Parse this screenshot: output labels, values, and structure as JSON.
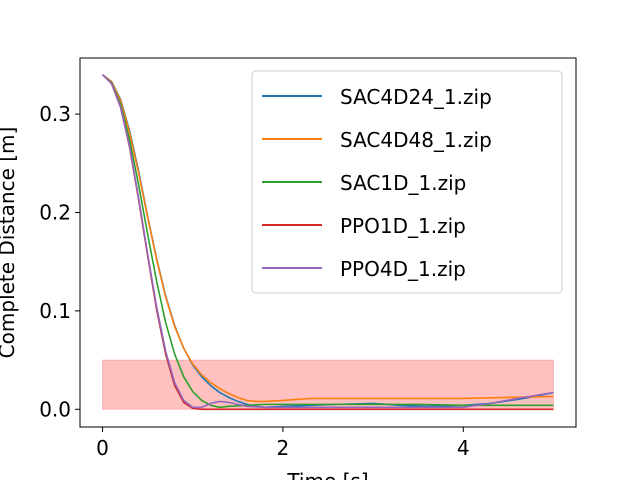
{
  "chart_data": {
    "type": "line",
    "xlabel": "Time [s]",
    "ylabel": "Complete Distance [m]",
    "xlim": [
      -0.25,
      5.25
    ],
    "ylim": [
      -0.018,
      0.357
    ],
    "xticks": [
      0,
      2,
      4
    ],
    "xtick_labels": [
      "0",
      "2",
      "4"
    ],
    "yticks": [
      0.0,
      0.1,
      0.2,
      0.3
    ],
    "ytick_labels": [
      "0.0",
      "0.1",
      "0.2",
      "0.3"
    ],
    "grid": false,
    "legend_position": "top-right",
    "target_band": {
      "x": [
        0,
        5
      ],
      "y": [
        0,
        0.05
      ],
      "color": "#ff9896"
    },
    "series": [
      {
        "name": "SAC4D24_1.zip",
        "color": "#1f77b4",
        "x": [
          0,
          0.1,
          0.2,
          0.3,
          0.4,
          0.5,
          0.6,
          0.7,
          0.8,
          0.9,
          1.0,
          1.1,
          1.2,
          1.3,
          1.4,
          1.5,
          1.6,
          1.7,
          1.8,
          2.0,
          2.3,
          2.6,
          3.0,
          3.3,
          3.6,
          4.0,
          4.3,
          4.6,
          4.8,
          5.0
        ],
        "y": [
          0.34,
          0.333,
          0.315,
          0.283,
          0.242,
          0.196,
          0.153,
          0.115,
          0.085,
          0.062,
          0.045,
          0.033,
          0.024,
          0.017,
          0.012,
          0.008,
          0.005,
          0.003,
          0.002,
          0.003,
          0.004,
          0.005,
          0.006,
          0.004,
          0.003,
          0.004,
          0.006,
          0.01,
          0.013,
          0.017
        ]
      },
      {
        "name": "SAC4D48_1.zip",
        "color": "#ff7f0e",
        "x": [
          0,
          0.1,
          0.2,
          0.3,
          0.4,
          0.5,
          0.6,
          0.7,
          0.8,
          0.9,
          1.0,
          1.1,
          1.2,
          1.3,
          1.4,
          1.5,
          1.6,
          1.7,
          1.8,
          2.0,
          2.3,
          2.6,
          3.0,
          3.5,
          4.0,
          4.5,
          5.0
        ],
        "y": [
          0.34,
          0.333,
          0.314,
          0.281,
          0.24,
          0.195,
          0.152,
          0.114,
          0.084,
          0.062,
          0.046,
          0.035,
          0.027,
          0.021,
          0.016,
          0.012,
          0.009,
          0.008,
          0.008,
          0.009,
          0.011,
          0.011,
          0.011,
          0.011,
          0.011,
          0.012,
          0.013
        ]
      },
      {
        "name": "SAC1D_1.zip",
        "color": "#2ca02c",
        "x": [
          0,
          0.1,
          0.2,
          0.3,
          0.4,
          0.5,
          0.6,
          0.7,
          0.8,
          0.9,
          1.0,
          1.1,
          1.2,
          1.3,
          1.4,
          1.6,
          1.8,
          2.0,
          2.5,
          3.0,
          3.5,
          4.0,
          4.5,
          5.0
        ],
        "y": [
          0.34,
          0.332,
          0.31,
          0.274,
          0.228,
          0.178,
          0.13,
          0.088,
          0.056,
          0.033,
          0.018,
          0.009,
          0.004,
          0.002,
          0.003,
          0.004,
          0.005,
          0.005,
          0.005,
          0.005,
          0.005,
          0.004,
          0.004,
          0.004
        ]
      },
      {
        "name": "PPO1D_1.zip",
        "color": "#d62728",
        "x": [
          0,
          0.1,
          0.2,
          0.3,
          0.4,
          0.5,
          0.6,
          0.7,
          0.8,
          0.9,
          1.0,
          1.1,
          1.2,
          1.5,
          2.0,
          3.0,
          4.0,
          5.0
        ],
        "y": [
          0.34,
          0.331,
          0.307,
          0.266,
          0.213,
          0.156,
          0.101,
          0.056,
          0.024,
          0.007,
          0.001,
          0.0,
          0.0,
          0.0,
          0.0,
          0.0,
          0.0,
          0.0
        ]
      },
      {
        "name": "PPO4D_1.zip",
        "color": "#9467bd",
        "x": [
          0,
          0.1,
          0.2,
          0.3,
          0.4,
          0.5,
          0.6,
          0.7,
          0.8,
          0.9,
          1.0,
          1.1,
          1.2,
          1.3,
          1.4,
          1.5,
          1.6,
          1.8,
          2.0,
          2.5,
          3.0,
          3.5,
          4.0,
          4.3,
          4.6,
          5.0
        ],
        "y": [
          0.34,
          0.331,
          0.307,
          0.267,
          0.215,
          0.158,
          0.104,
          0.059,
          0.027,
          0.009,
          0.002,
          0.002,
          0.006,
          0.008,
          0.007,
          0.005,
          0.003,
          0.002,
          0.002,
          0.002,
          0.002,
          0.002,
          0.002,
          0.006,
          0.011,
          0.017
        ]
      }
    ]
  }
}
